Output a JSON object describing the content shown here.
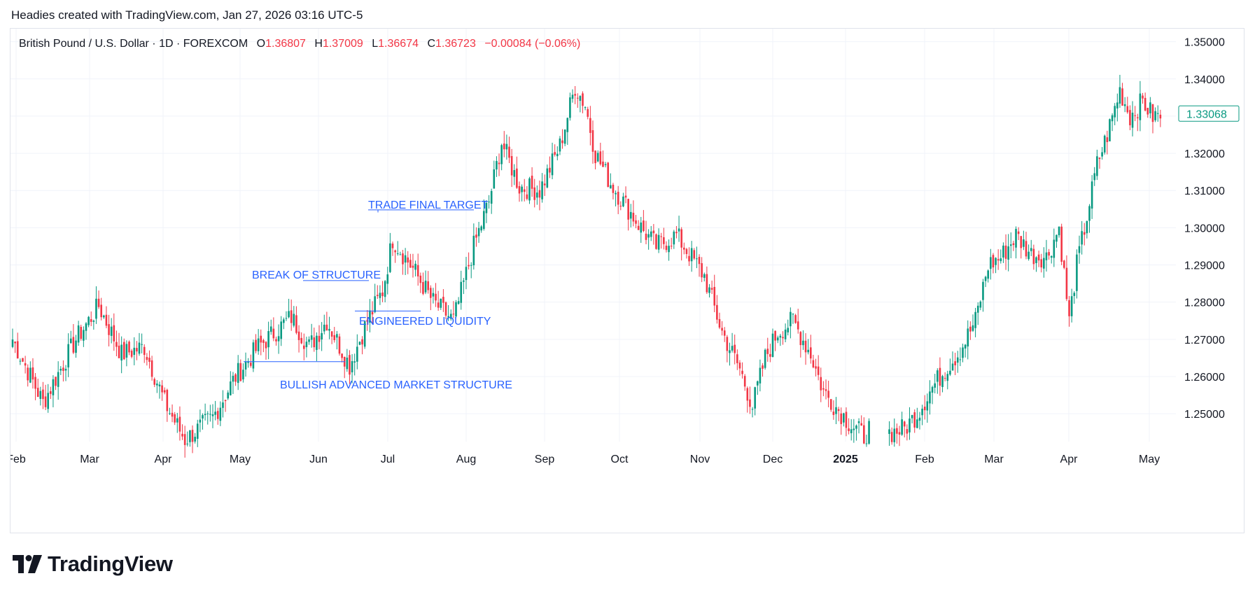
{
  "header": {
    "text": "Headies created with TradingView.com, Jan 27, 2026 03:16 UTC-5"
  },
  "legend": {
    "symbol": "British Pound / U.S. Dollar · 1D · FOREXCOM",
    "o_label": "O",
    "o_value": "1.36807",
    "h_label": "H",
    "h_value": "1.37009",
    "l_label": "L",
    "l_value": "1.36674",
    "c_label": "C",
    "c_value": "1.36723",
    "change": "−0.00084 (−0.06%)"
  },
  "brand": {
    "name": "TradingView",
    "icon": "tradingview-logo-icon"
  },
  "colors": {
    "up": "#089981",
    "down": "#f23645",
    "annotation": "#2962ff",
    "grid": "#f0f3fa",
    "text": "#131722"
  },
  "chart_data": {
    "type": "candlestick",
    "title": "British Pound / U.S. Dollar · 1D · FOREXCOM",
    "xlabel": "",
    "ylabel": "",
    "ylim": [
      1.2425,
      1.3535
    ],
    "grid": true,
    "y_ticks": [
      "1.25000",
      "1.26000",
      "1.27000",
      "1.28000",
      "1.29000",
      "1.30000",
      "1.31000",
      "1.32000",
      "1.33000",
      "1.34000",
      "1.35000"
    ],
    "x_ticks": [
      {
        "label": "Feb",
        "bold": false
      },
      {
        "label": "Mar",
        "bold": false
      },
      {
        "label": "Apr",
        "bold": false
      },
      {
        "label": "May",
        "bold": false
      },
      {
        "label": "Jun",
        "bold": false
      },
      {
        "label": "Jul",
        "bold": false
      },
      {
        "label": "Aug",
        "bold": false
      },
      {
        "label": "Sep",
        "bold": false
      },
      {
        "label": "Oct",
        "bold": false
      },
      {
        "label": "Nov",
        "bold": false
      },
      {
        "label": "Dec",
        "bold": false
      },
      {
        "label": "2025",
        "bold": true
      },
      {
        "label": "Feb",
        "bold": false
      },
      {
        "label": "Mar",
        "bold": false
      },
      {
        "label": "Apr",
        "bold": false
      },
      {
        "label": "May",
        "bold": false
      }
    ],
    "last_price": {
      "value": 1.33068,
      "label": "1.33068"
    },
    "anchors": [
      {
        "p": 0,
        "v": 1.27
      },
      {
        "p": 12,
        "v": 1.253
      },
      {
        "p": 25,
        "v": 1.27
      },
      {
        "p": 34,
        "v": 1.279
      },
      {
        "p": 43,
        "v": 1.266
      },
      {
        "p": 52,
        "v": 1.268
      },
      {
        "p": 60,
        "v": 1.253
      },
      {
        "p": 68,
        "v": 1.243
      },
      {
        "p": 79,
        "v": 1.249
      },
      {
        "p": 88,
        "v": 1.26
      },
      {
        "p": 97,
        "v": 1.268
      },
      {
        "p": 110,
        "v": 1.276
      },
      {
        "p": 117,
        "v": 1.268
      },
      {
        "p": 124,
        "v": 1.275
      },
      {
        "p": 133,
        "v": 1.263
      },
      {
        "p": 140,
        "v": 1.275
      },
      {
        "p": 146,
        "v": 1.283
      },
      {
        "p": 150,
        "v": 1.297
      },
      {
        "p": 158,
        "v": 1.289
      },
      {
        "p": 166,
        "v": 1.28
      },
      {
        "p": 174,
        "v": 1.275
      },
      {
        "p": 182,
        "v": 1.295
      },
      {
        "p": 188,
        "v": 1.307
      },
      {
        "p": 193,
        "v": 1.323
      },
      {
        "p": 200,
        "v": 1.311
      },
      {
        "p": 208,
        "v": 1.31
      },
      {
        "p": 216,
        "v": 1.322
      },
      {
        "p": 222,
        "v": 1.338
      },
      {
        "p": 226,
        "v": 1.333
      },
      {
        "p": 230,
        "v": 1.32
      },
      {
        "p": 236,
        "v": 1.312
      },
      {
        "p": 242,
        "v": 1.306
      },
      {
        "p": 248,
        "v": 1.3
      },
      {
        "p": 254,
        "v": 1.295
      },
      {
        "p": 262,
        "v": 1.298
      },
      {
        "p": 268,
        "v": 1.292
      },
      {
        "p": 273,
        "v": 1.287
      },
      {
        "p": 280,
        "v": 1.272
      },
      {
        "p": 287,
        "v": 1.262
      },
      {
        "p": 292,
        "v": 1.252
      },
      {
        "p": 297,
        "v": 1.265
      },
      {
        "p": 302,
        "v": 1.272
      },
      {
        "p": 308,
        "v": 1.275
      },
      {
        "p": 315,
        "v": 1.266
      },
      {
        "p": 320,
        "v": 1.256
      },
      {
        "p": 326,
        "v": 1.251
      },
      {
        "p": 331,
        "v": 1.247
      },
      {
        "p": 336,
        "v": 1.244
      },
      {
        "p": 338,
        "v": 1.246
      },
      {
        "p": 347,
        "v": 1.245
      },
      {
        "p": 352,
        "v": 1.246
      },
      {
        "p": 357,
        "v": 1.25
      },
      {
        "p": 362,
        "v": 1.256
      },
      {
        "p": 368,
        "v": 1.262
      },
      {
        "p": 374,
        "v": 1.267
      },
      {
        "p": 380,
        "v": 1.275
      },
      {
        "p": 385,
        "v": 1.29
      },
      {
        "p": 390,
        "v": 1.292
      },
      {
        "p": 396,
        "v": 1.298
      },
      {
        "p": 402,
        "v": 1.293
      },
      {
        "p": 408,
        "v": 1.292
      },
      {
        "p": 413,
        "v": 1.3
      },
      {
        "p": 417,
        "v": 1.275
      },
      {
        "p": 420,
        "v": 1.29
      },
      {
        "p": 424,
        "v": 1.303
      },
      {
        "p": 428,
        "v": 1.317
      },
      {
        "p": 432,
        "v": 1.325
      },
      {
        "p": 437,
        "v": 1.337
      },
      {
        "p": 441,
        "v": 1.33
      },
      {
        "p": 446,
        "v": 1.334
      },
      {
        "p": 450,
        "v": 1.33
      },
      {
        "p": 453,
        "v": 1.33
      }
    ],
    "annotations": [
      {
        "label": "TRADE FINAL TARGET",
        "value": 1.3048
      },
      {
        "label": "BREAK OF STRUCTURE",
        "value": 1.2858
      },
      {
        "label": "ENGINEERED LIQUIDITY",
        "value": 1.2776
      },
      {
        "label": "BULLISH ADVANCED MARKET STRUCTURE",
        "value": 1.264
      }
    ]
  }
}
